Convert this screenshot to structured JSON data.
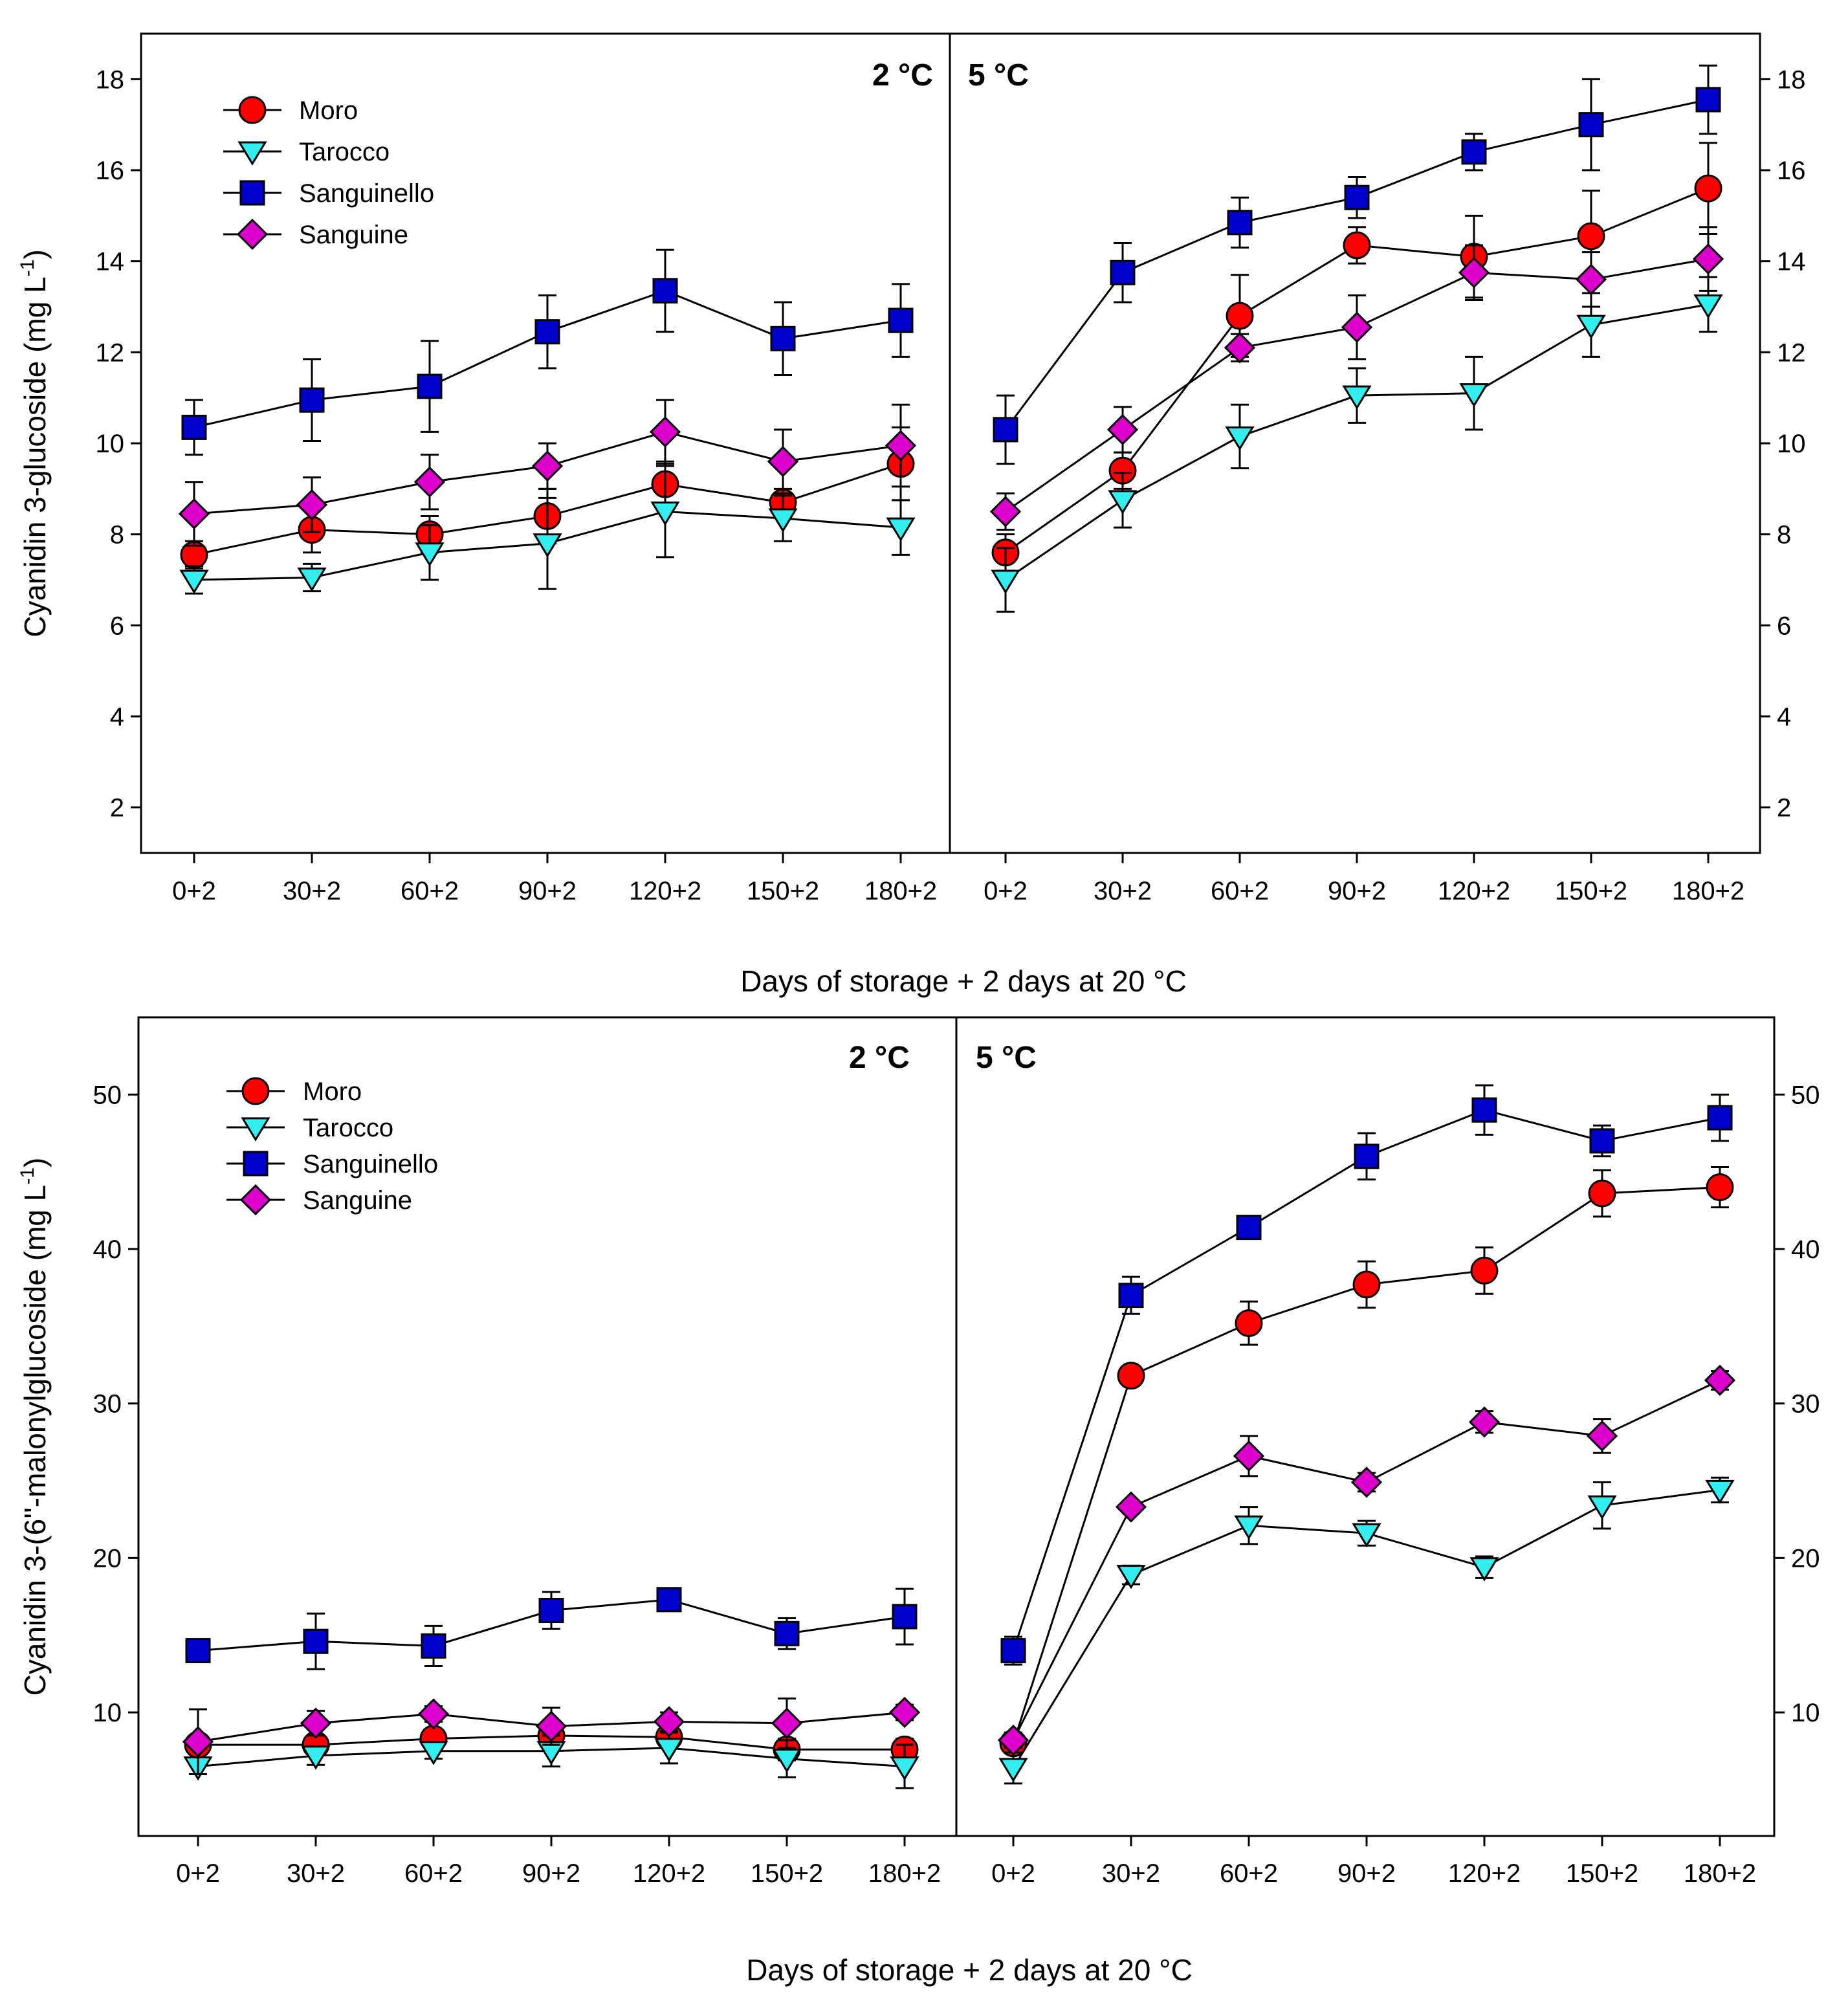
{
  "colors": {
    "Moro": "#ff0000",
    "Tarocco": "#33eeee",
    "Sanguinello": "#0000cc",
    "Sanguine": "#dd00cc"
  },
  "chart_data": [
    {
      "type": "line",
      "title": "",
      "ylabel": "Cyanidin 3-glucoside (mg L",
      "ylabel_sup": "-1",
      "ylabel_close": ")",
      "xlabel": "Days of storage + 2 days at 20 °C",
      "categories": [
        "0+2",
        "30+2",
        "60+2",
        "90+2",
        "120+2",
        "150+2",
        "180+2"
      ],
      "ylim": [
        1,
        19
      ],
      "yticks": [
        2,
        4,
        6,
        8,
        10,
        12,
        14,
        16,
        18
      ],
      "yticklabels": [
        "2",
        "4",
        "6",
        "8",
        "10",
        "12",
        "14",
        "16",
        "18"
      ],
      "legend": [
        "Moro",
        "Tarocco",
        "Sanguinello",
        "Sanguine"
      ],
      "panels": [
        {
          "label": "2 °C",
          "series": [
            {
              "name": "Moro",
              "marker": "circle",
              "values": [
                7.55,
                8.1,
                8.0,
                8.4,
                9.1,
                8.7,
                9.55
              ],
              "err": [
                0.3,
                0.5,
                0.4,
                0.6,
                0.5,
                0.3,
                0.8
              ]
            },
            {
              "name": "Tarocco",
              "marker": "triangle",
              "values": [
                7.0,
                7.05,
                7.6,
                7.8,
                8.5,
                8.35,
                8.15
              ],
              "err": [
                0.3,
                0.3,
                0.6,
                1.0,
                1.0,
                0.5,
                0.6
              ]
            },
            {
              "name": "Sanguinello",
              "marker": "square",
              "values": [
                10.35,
                10.95,
                11.25,
                12.45,
                13.35,
                12.3,
                12.7
              ],
              "err": [
                0.6,
                0.9,
                1.0,
                0.8,
                0.9,
                0.8,
                0.8
              ]
            },
            {
              "name": "Sanguine",
              "marker": "diamond",
              "values": [
                8.45,
                8.65,
                9.15,
                9.5,
                10.25,
                9.6,
                9.95
              ],
              "err": [
                0.7,
                0.6,
                0.6,
                0.5,
                0.7,
                0.7,
                0.9
              ]
            }
          ]
        },
        {
          "label": "5 °C",
          "series": [
            {
              "name": "Moro",
              "marker": "circle",
              "values": [
                7.6,
                9.4,
                12.8,
                14.35,
                14.1,
                14.55,
                15.6
              ],
              "err": [
                0.4,
                0.4,
                0.9,
                0.4,
                0.9,
                1.0,
                1.0
              ]
            },
            {
              "name": "Tarocco",
              "marker": "triangle",
              "values": [
                7.0,
                8.75,
                10.15,
                11.05,
                11.1,
                12.6,
                13.05
              ],
              "err": [
                0.7,
                0.6,
                0.7,
                0.6,
                0.8,
                0.7,
                0.6
              ]
            },
            {
              "name": "Sanguinello",
              "marker": "square",
              "values": [
                10.3,
                13.75,
                14.85,
                15.4,
                16.4,
                17.0,
                17.55
              ],
              "err": [
                0.75,
                0.65,
                0.55,
                0.45,
                0.4,
                1.0,
                0.75
              ]
            },
            {
              "name": "Sanguine",
              "marker": "diamond",
              "values": [
                8.5,
                10.3,
                12.1,
                12.55,
                13.75,
                13.6,
                14.05
              ],
              "err": [
                0.4,
                0.5,
                0.3,
                0.7,
                0.6,
                0.6,
                0.7
              ]
            }
          ]
        }
      ]
    },
    {
      "type": "line",
      "title": "",
      "ylabel": "Cyanidin 3-(6''-malonylglucoside (mg L",
      "ylabel_sup": "-1",
      "ylabel_close": ")",
      "xlabel": "Days of storage + 2 days at 20 °C",
      "categories": [
        "0+2",
        "30+2",
        "60+2",
        "90+2",
        "120+2",
        "150+2",
        "180+2"
      ],
      "ylim": [
        2,
        55
      ],
      "yticks": [
        10,
        20,
        30,
        40,
        50
      ],
      "yticklabels": [
        "10",
        "20",
        "30",
        "40",
        "50"
      ],
      "legend": [
        "Moro",
        "Tarocco",
        "Sanguinello",
        "Sanguine"
      ],
      "panels": [
        {
          "label": "2 °C",
          "series": [
            {
              "name": "Moro",
              "marker": "circle",
              "values": [
                7.9,
                7.9,
                8.3,
                8.5,
                8.4,
                7.6,
                7.6
              ],
              "err": [
                0.6,
                0.6,
                0.6,
                0.7,
                0.7,
                0.7,
                0.7
              ]
            },
            {
              "name": "Tarocco",
              "marker": "triangle",
              "values": [
                6.5,
                7.2,
                7.5,
                7.5,
                7.7,
                7.0,
                6.5
              ],
              "err": [
                0.5,
                0.6,
                0.5,
                1.0,
                1.0,
                1.2,
                1.4
              ]
            },
            {
              "name": "Sanguinello",
              "marker": "square",
              "values": [
                14.0,
                14.6,
                14.3,
                16.6,
                17.3,
                15.1,
                16.2
              ],
              "err": [
                0.7,
                1.8,
                1.3,
                1.2,
                0.5,
                1.0,
                1.8
              ]
            },
            {
              "name": "Sanguine",
              "marker": "diamond",
              "values": [
                8.1,
                9.3,
                9.9,
                9.1,
                9.4,
                9.3,
                10.0
              ],
              "err": [
                2.1,
                0.8,
                0.5,
                1.2,
                0.6,
                1.6,
                0.5
              ]
            }
          ]
        },
        {
          "label": "5 °C",
          "series": [
            {
              "name": "Moro",
              "marker": "circle",
              "values": [
                8.0,
                31.8,
                35.2,
                37.7,
                38.6,
                43.6,
                44.0
              ],
              "err": [
                0.5,
                0.4,
                1.4,
                1.5,
                1.5,
                1.5,
                1.3
              ]
            },
            {
              "name": "Tarocco",
              "marker": "triangle",
              "values": [
                6.4,
                18.9,
                22.1,
                21.6,
                19.4,
                23.4,
                24.4
              ],
              "err": [
                1.0,
                0.6,
                1.2,
                0.8,
                0.7,
                1.5,
                0.8
              ]
            },
            {
              "name": "Sanguinello",
              "marker": "square",
              "values": [
                14.0,
                37.0,
                41.4,
                46.0,
                49.0,
                47.0,
                48.5
              ],
              "err": [
                0.9,
                1.2,
                0.6,
                1.5,
                1.6,
                1.0,
                1.5
              ]
            },
            {
              "name": "Sanguine",
              "marker": "diamond",
              "values": [
                8.2,
                23.3,
                26.6,
                24.9,
                28.8,
                27.9,
                31.5
              ],
              "err": [
                0.5,
                0.4,
                1.3,
                0.6,
                0.7,
                1.1,
                0.6
              ]
            }
          ]
        }
      ]
    }
  ]
}
